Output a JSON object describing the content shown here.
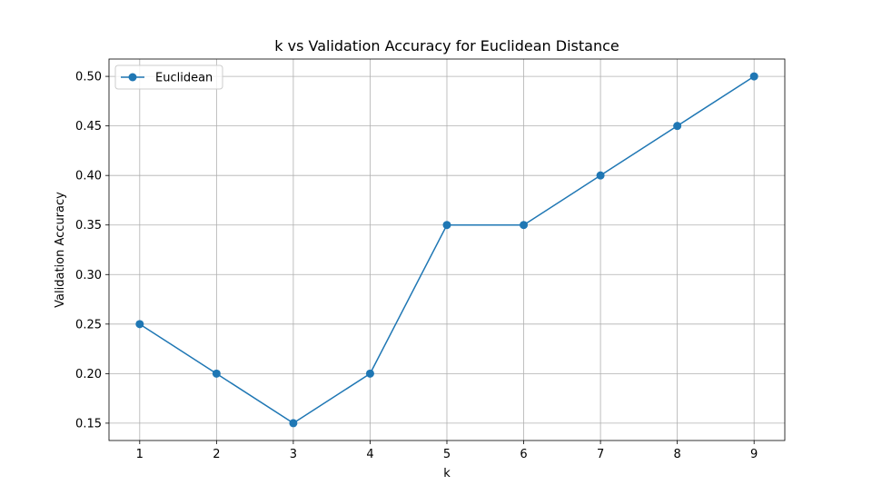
{
  "chart_data": {
    "type": "line",
    "title": "k vs Validation Accuracy for Euclidean Distance",
    "xlabel": "k",
    "ylabel": "Validation Accuracy",
    "x": [
      1,
      2,
      3,
      4,
      5,
      6,
      7,
      8,
      9
    ],
    "series": [
      {
        "name": "Euclidean",
        "color": "#1f77b4",
        "marker": "circle",
        "values": [
          0.25,
          0.2,
          0.15,
          0.2,
          0.35,
          0.35,
          0.4,
          0.45,
          0.5
        ]
      }
    ],
    "xticks": [
      "1",
      "2",
      "3",
      "4",
      "5",
      "6",
      "7",
      "8",
      "9"
    ],
    "yticks": [
      "0.15",
      "0.20",
      "0.25",
      "0.30",
      "0.35",
      "0.40",
      "0.45",
      "0.50"
    ],
    "xlim": [
      0.6,
      9.4
    ],
    "ylim": [
      0.1325,
      0.5175
    ],
    "grid": true,
    "legend_position": "top-left"
  }
}
